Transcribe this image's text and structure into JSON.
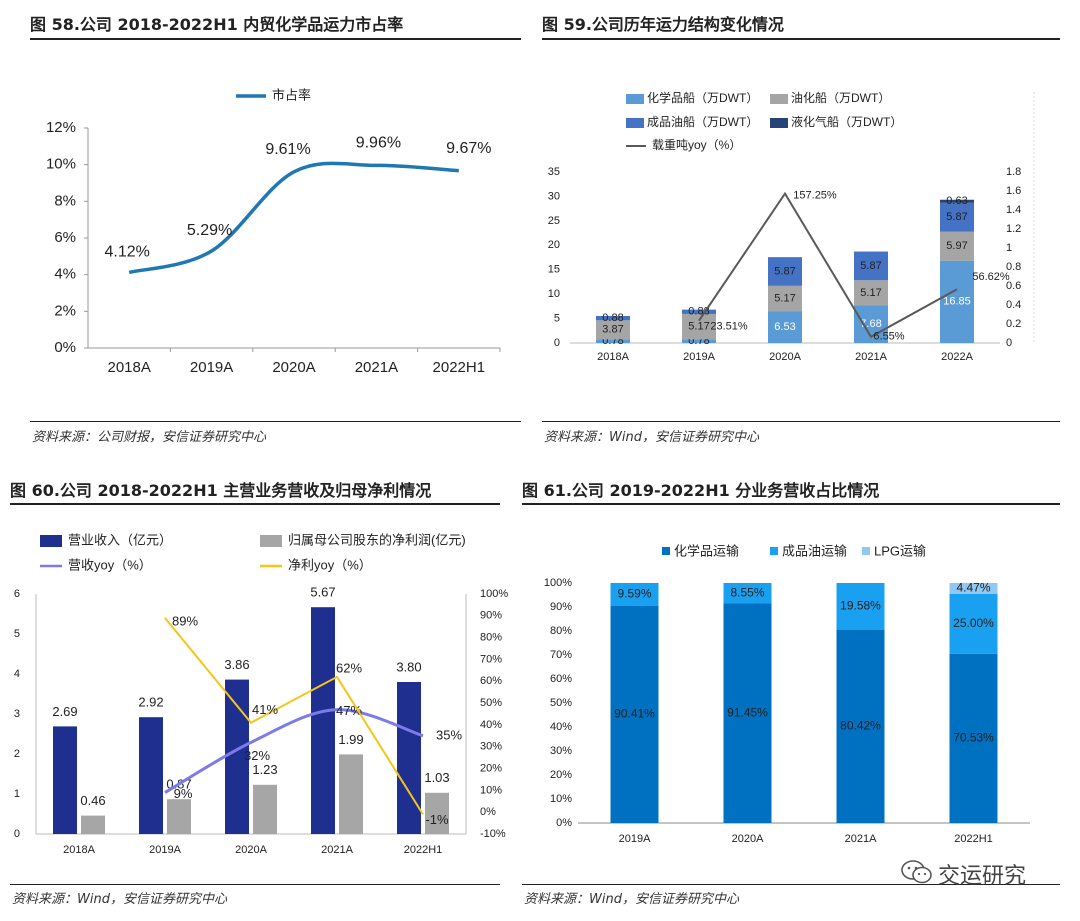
{
  "chart_data": [
    {
      "id": "fig58",
      "type": "line",
      "title": "图 58.公司 2018-2022H1 内贸化学品运力市占率",
      "categories": [
        "2018A",
        "2019A",
        "2020A",
        "2021A",
        "2022H1"
      ],
      "series": [
        {
          "name": "市占率",
          "values": [
            4.12,
            5.29,
            9.61,
            9.96,
            9.67
          ],
          "labels": [
            "4.12%",
            "5.29%",
            "9.61%",
            "9.96%",
            "9.67%"
          ],
          "color": "#1f77b4"
        }
      ],
      "ylim": [
        0,
        12
      ],
      "yticks": [
        "0%",
        "2%",
        "4%",
        "6%",
        "8%",
        "10%",
        "12%"
      ],
      "source": "资料来源：公司财报，安信证券研究中心"
    },
    {
      "id": "fig59",
      "type": "bar",
      "title": "图 59.公司历年运力结构变化情况",
      "categories": [
        "2018A",
        "2019A",
        "2020A",
        "2021A",
        "2022A"
      ],
      "stacked": true,
      "series": [
        {
          "name": "化学品船（万DWT）",
          "values": [
            0.78,
            0.78,
            6.53,
            7.68,
            16.85
          ],
          "color": "#5b9bd5"
        },
        {
          "name": "油化船（万DWT）",
          "values": [
            3.87,
            5.17,
            5.17,
            5.17,
            5.97
          ],
          "color": "#a5a5a5"
        },
        {
          "name": "成品油船（万DWT）",
          "values": [
            0.88,
            0.88,
            5.87,
            5.87,
            5.87
          ],
          "color": "#4472c4"
        },
        {
          "name": "液化气船（万DWT）",
          "values": [
            0,
            0,
            0,
            0,
            0.63
          ],
          "color": "#264478"
        }
      ],
      "bar_labels": [
        [
          "0.78",
          "3.87",
          "0.88",
          ""
        ],
        [
          "0.78",
          "5.17",
          "0.88",
          ""
        ],
        [
          "6.53",
          "5.17",
          "5.87",
          ""
        ],
        [
          "7.68",
          "5.17",
          "5.87",
          ""
        ],
        [
          "16.85",
          "5.97",
          "5.87",
          "0.63"
        ]
      ],
      "line": {
        "name": "载重吨yoy（%）",
        "values": [
          null,
          0.2351,
          1.5725,
          0.0655,
          0.5662
        ],
        "labels": [
          "",
          "23.51%",
          "157.25%",
          "6.55%",
          "56.62%"
        ],
        "color": "#595959"
      },
      "ylim": [
        0,
        35
      ],
      "yticks": [
        "0",
        "5",
        "10",
        "15",
        "20",
        "25",
        "30",
        "35"
      ],
      "y2lim": [
        0,
        1.8
      ],
      "y2ticks": [
        "0",
        "0.2",
        "0.4",
        "0.6",
        "0.8",
        "1",
        "1.2",
        "1.4",
        "1.6",
        "1.8"
      ],
      "source": "资料来源：Wind，安信证券研究中心"
    },
    {
      "id": "fig60",
      "type": "bar",
      "title": "图 60.公司 2018-2022H1 主营业务营收及归母净利情况",
      "categories": [
        "2018A",
        "2019A",
        "2020A",
        "2021A",
        "2022H1"
      ],
      "series": [
        {
          "name": "营业收入（亿元）",
          "values": [
            2.69,
            2.92,
            3.86,
            5.67,
            3.8
          ],
          "color": "#1f2f8f"
        },
        {
          "name": "归属母公司股东的净利润(亿元)",
          "values": [
            0.46,
            0.87,
            1.23,
            1.99,
            1.03
          ],
          "color": "#a6a6a6"
        }
      ],
      "lines": [
        {
          "name": "营收yoy（%）",
          "values": [
            null,
            9,
            32,
            47,
            35
          ],
          "labels": [
            "",
            "9%",
            "32%",
            "47%",
            "35%"
          ],
          "color": "#7b7bea"
        },
        {
          "name": "净利yoy（%）",
          "values": [
            null,
            89,
            41,
            62,
            -1
          ],
          "labels": [
            "",
            "89%",
            "41%",
            "62%",
            "-1%"
          ],
          "color": "#f5c518"
        }
      ],
      "ylim": [
        0,
        6
      ],
      "yticks": [
        "0",
        "1",
        "2",
        "3",
        "4",
        "5",
        "6"
      ],
      "y2lim": [
        -10,
        100
      ],
      "y2ticks": [
        "-10%",
        "0%",
        "10%",
        "20%",
        "30%",
        "40%",
        "50%",
        "60%",
        "70%",
        "80%",
        "90%",
        "100%"
      ],
      "source": "资料来源：Wind，安信证券研究中心"
    },
    {
      "id": "fig61",
      "type": "bar",
      "title": "图 61.公司 2019-2022H1 分业务营收占比情况",
      "categories": [
        "2019A",
        "2020A",
        "2021A",
        "2022H1"
      ],
      "stacked_percent": true,
      "series": [
        {
          "name": "化学品运输",
          "values": [
            90.41,
            91.45,
            80.42,
            70.53
          ],
          "color": "#0070c0"
        },
        {
          "name": "成品油运输",
          "values": [
            9.59,
            8.55,
            19.58,
            25.0
          ],
          "color": "#1aa0f0"
        },
        {
          "name": "LPG运输",
          "values": [
            0,
            0,
            0,
            4.47
          ],
          "color": "#8fc8f0"
        }
      ],
      "bar_labels": [
        [
          "90.41%",
          "9.59%",
          ""
        ],
        [
          "91.45%",
          "8.55%",
          ""
        ],
        [
          "80.42%",
          "19.58%",
          ""
        ],
        [
          "70.53%",
          "25.00%",
          "4.47%"
        ]
      ],
      "ylim": [
        0,
        100
      ],
      "yticks": [
        "0%",
        "10%",
        "20%",
        "30%",
        "40%",
        "50%",
        "60%",
        "70%",
        "80%",
        "90%",
        "100%"
      ],
      "source": "资料来源：Wind，安信证券研究中心"
    }
  ],
  "watermark": "交运研究"
}
